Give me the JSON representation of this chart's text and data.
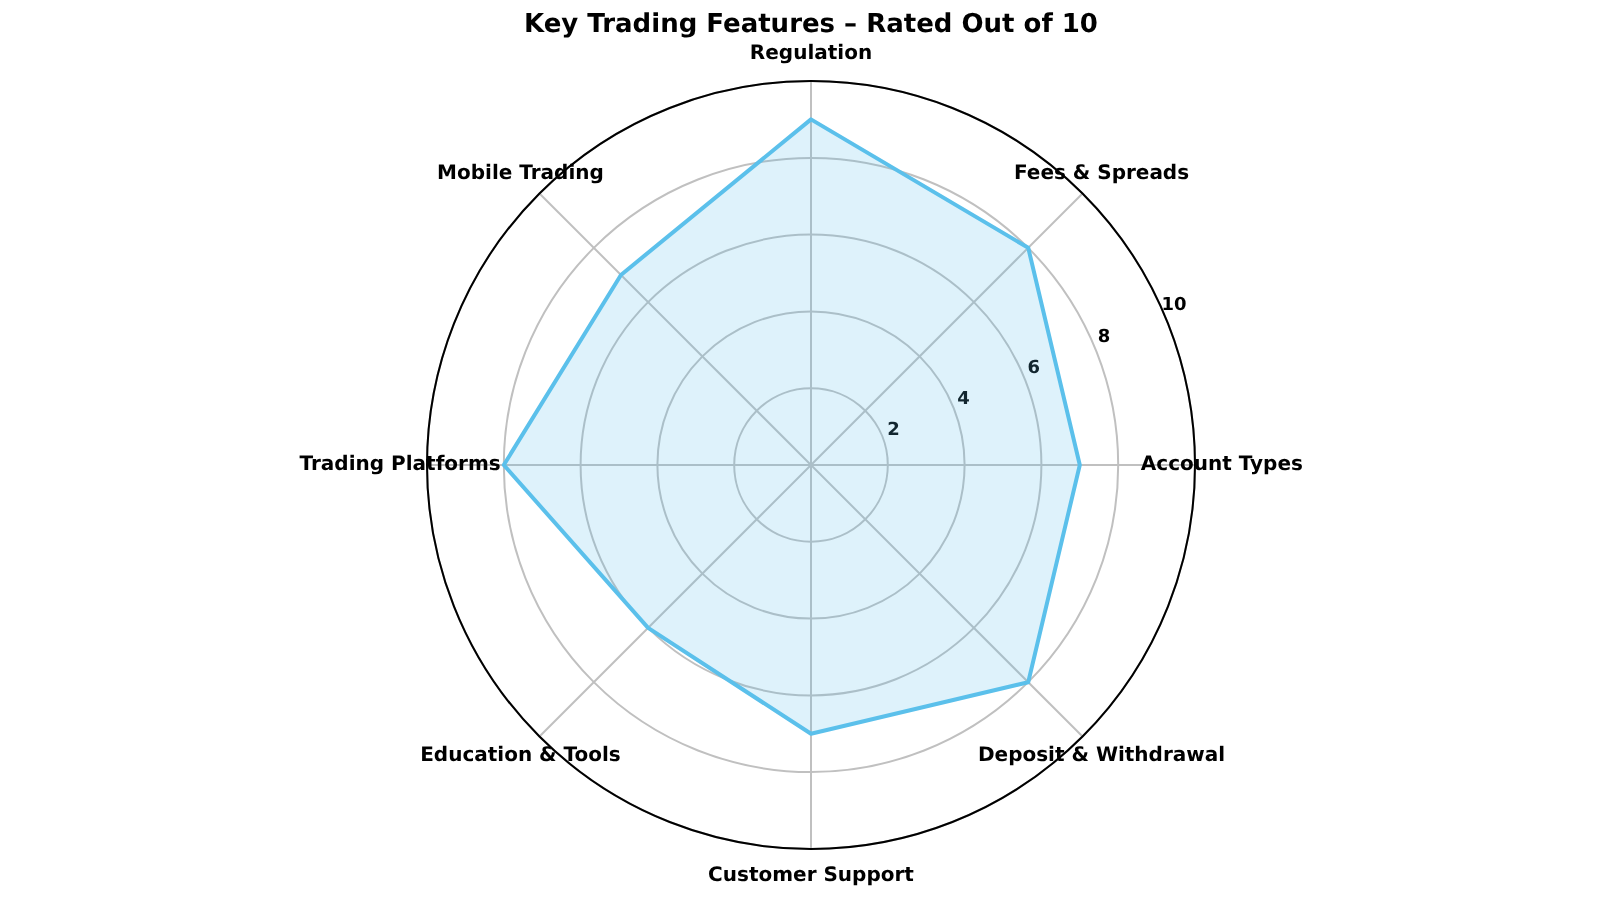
{
  "chart_data": {
    "type": "radar",
    "title": "Key Trading Features – Rated Out of 10",
    "categories": [
      "Regulation",
      "Fees & Spreads",
      "Account Types",
      "Deposit & Withdrawal",
      "Customer Support",
      "Education & Tools",
      "Trading Platforms",
      "Mobile Trading"
    ],
    "series": [
      {
        "color": "#5bc0eb",
        "values": [
          9,
          8,
          7,
          8,
          7,
          6,
          8,
          7
        ]
      }
    ],
    "ylim": [
      0,
      10
    ],
    "yticks": [
      2,
      4,
      6,
      8,
      10
    ],
    "grid": true
  }
}
